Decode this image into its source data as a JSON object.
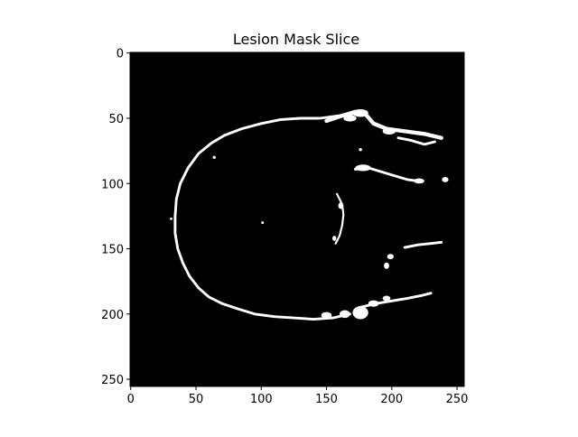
{
  "chart_data": {
    "type": "heatmap",
    "title": "Lesion Mask Slice",
    "xlabel": "",
    "ylabel": "",
    "image_size": [
      256,
      256
    ],
    "xlim": [
      -0.5,
      255.5
    ],
    "ylim": [
      255.5,
      -0.5
    ],
    "x_ticks": [
      0,
      50,
      100,
      150,
      200,
      250
    ],
    "y_ticks": [
      0,
      50,
      100,
      150,
      200,
      250
    ],
    "colormap": "gray",
    "background_color": "#000000",
    "foreground_color": "#ffffff",
    "grid": false,
    "mask_features": [
      {
        "label": "outer-rim",
        "kind": "stroke",
        "width": 2,
        "points": [
          [
            174,
            46
          ],
          [
            160,
            48
          ],
          [
            145,
            50
          ],
          [
            130,
            50
          ],
          [
            115,
            51
          ],
          [
            100,
            54
          ],
          [
            85,
            58
          ],
          [
            72,
            63
          ],
          [
            62,
            69
          ],
          [
            52,
            77
          ],
          [
            44,
            88
          ],
          [
            38,
            100
          ],
          [
            35,
            112
          ],
          [
            34,
            125
          ],
          [
            34,
            138
          ],
          [
            36,
            150
          ],
          [
            40,
            161
          ],
          [
            45,
            171
          ],
          [
            52,
            180
          ],
          [
            60,
            187
          ],
          [
            70,
            192
          ],
          [
            82,
            196
          ],
          [
            95,
            200
          ],
          [
            110,
            202
          ],
          [
            125,
            203
          ],
          [
            140,
            204
          ],
          [
            155,
            203
          ],
          [
            168,
            200
          ]
        ]
      },
      {
        "label": "upper-right-band",
        "kind": "stroke",
        "width": 3,
        "points": [
          [
            150,
            52
          ],
          [
            162,
            48
          ],
          [
            172,
            45
          ],
          [
            180,
            47
          ],
          [
            186,
            54
          ],
          [
            196,
            58
          ],
          [
            210,
            60
          ],
          [
            225,
            62
          ],
          [
            238,
            65
          ]
        ]
      },
      {
        "label": "upper-right-strand",
        "kind": "stroke",
        "width": 2,
        "points": [
          [
            205,
            65
          ],
          [
            215,
            67
          ],
          [
            225,
            70
          ],
          [
            233,
            68
          ]
        ]
      },
      {
        "label": "mid-right-streak",
        "kind": "stroke",
        "width": 2,
        "points": [
          [
            172,
            89
          ],
          [
            182,
            88
          ],
          [
            192,
            91
          ],
          [
            202,
            94
          ],
          [
            212,
            97
          ],
          [
            220,
            98
          ]
        ]
      },
      {
        "label": "lower-right-streak",
        "kind": "stroke",
        "width": 2,
        "points": [
          [
            210,
            149
          ],
          [
            220,
            147
          ],
          [
            230,
            146
          ],
          [
            238,
            145
          ]
        ]
      },
      {
        "label": "lower-band",
        "kind": "stroke",
        "width": 2,
        "points": [
          [
            175,
            195
          ],
          [
            188,
            192
          ],
          [
            200,
            190
          ],
          [
            212,
            188
          ],
          [
            222,
            186
          ],
          [
            230,
            184
          ]
        ]
      },
      {
        "label": "inner-streak",
        "kind": "stroke",
        "width": 1.5,
        "points": [
          [
            158,
            108
          ],
          [
            162,
            116
          ],
          [
            163,
            124
          ],
          [
            162,
            132
          ],
          [
            160,
            140
          ],
          [
            157,
            146
          ]
        ]
      },
      {
        "label": "upper-blob",
        "kind": "ellipse",
        "cx": 176,
        "cy": 46,
        "rx": 6,
        "ry": 3
      },
      {
        "label": "upper-blob-2",
        "kind": "ellipse",
        "cx": 168,
        "cy": 50,
        "rx": 5,
        "ry": 2.5
      },
      {
        "label": "upper-right-blob",
        "kind": "ellipse",
        "cx": 198,
        "cy": 60,
        "rx": 5,
        "ry": 2.5
      },
      {
        "label": "mid-blob",
        "kind": "ellipse",
        "cx": 178,
        "cy": 88,
        "rx": 6,
        "ry": 2.5
      },
      {
        "label": "right-blob",
        "kind": "ellipse",
        "cx": 221,
        "cy": 98,
        "rx": 4,
        "ry": 2
      },
      {
        "label": "far-right-blob",
        "kind": "ellipse",
        "cx": 241,
        "cy": 97,
        "rx": 2.5,
        "ry": 2
      },
      {
        "label": "inner-blob",
        "kind": "ellipse",
        "cx": 161,
        "cy": 117,
        "rx": 2,
        "ry": 2.5
      },
      {
        "label": "inner-blob-2",
        "kind": "ellipse",
        "cx": 156,
        "cy": 142,
        "rx": 1.5,
        "ry": 2
      },
      {
        "label": "side-blob",
        "kind": "ellipse",
        "cx": 199,
        "cy": 156,
        "rx": 2.5,
        "ry": 2
      },
      {
        "label": "side-blob-2",
        "kind": "ellipse",
        "cx": 196,
        "cy": 163,
        "rx": 2,
        "ry": 2.5
      },
      {
        "label": "lower-blob-1",
        "kind": "ellipse",
        "cx": 176,
        "cy": 199,
        "rx": 6,
        "ry": 5
      },
      {
        "label": "lower-blob-2",
        "kind": "ellipse",
        "cx": 164,
        "cy": 200,
        "rx": 4,
        "ry": 3
      },
      {
        "label": "lower-blob-3",
        "kind": "ellipse",
        "cx": 150,
        "cy": 201,
        "rx": 4,
        "ry": 2.5
      },
      {
        "label": "lower-right-blob",
        "kind": "ellipse",
        "cx": 186,
        "cy": 192,
        "rx": 4,
        "ry": 2.5
      },
      {
        "label": "lower-right-blob-2",
        "kind": "ellipse",
        "cx": 196,
        "cy": 188,
        "rx": 3,
        "ry": 2
      },
      {
        "label": "speck",
        "kind": "ellipse",
        "cx": 101,
        "cy": 130,
        "rx": 1,
        "ry": 1
      },
      {
        "label": "speck-2",
        "kind": "ellipse",
        "cx": 31,
        "cy": 127,
        "rx": 1,
        "ry": 1
      },
      {
        "label": "speck-3",
        "kind": "ellipse",
        "cx": 64,
        "cy": 80,
        "rx": 1.2,
        "ry": 1.2
      },
      {
        "label": "speck-4",
        "kind": "ellipse",
        "cx": 176,
        "cy": 74,
        "rx": 1.2,
        "ry": 1.2
      }
    ]
  }
}
